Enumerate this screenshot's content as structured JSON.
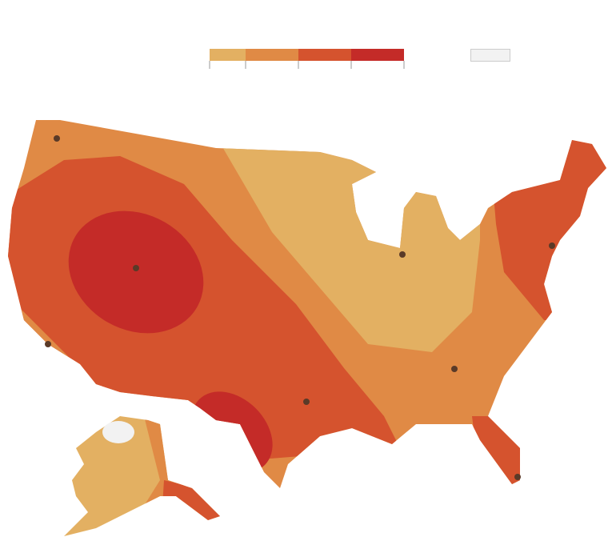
{
  "legend": {
    "colors": [
      "#e3b062",
      "#e08a45",
      "#d5532e",
      "#c42b28"
    ],
    "no_data_color": "#f2f2f2"
  }
}
